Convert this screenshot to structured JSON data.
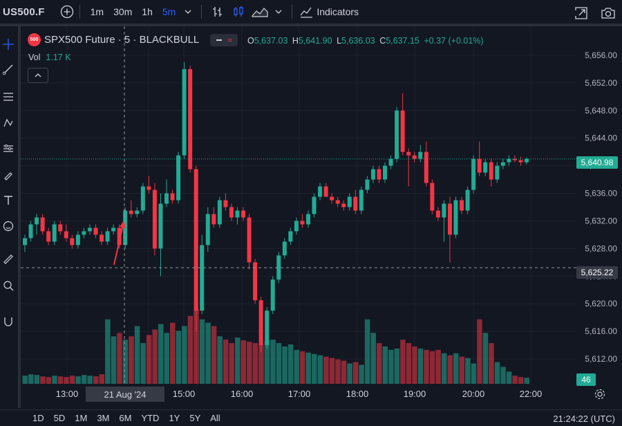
{
  "toolbar": {
    "symbol": "US500.F",
    "intervals": [
      "1m",
      "30m",
      "1h",
      "5m"
    ],
    "active_interval": "5m",
    "indicators_label": "Indicators"
  },
  "legend": {
    "logo_text": "500",
    "title": "SPX500 Future · 5 · BLACKBULL",
    "open_label": "O",
    "open": "5,637.03",
    "high_label": "H",
    "high": "5,641.90",
    "low_label": "L",
    "low": "5,636.03",
    "close_label": "C",
    "close": "5,637.15",
    "change": "+0.37 (+0.01%)",
    "vol_label": "Vol",
    "vol_value": "1.17 K"
  },
  "price_axis": {
    "ticks": [
      "5,656.00",
      "5,652.00",
      "5,648.00",
      "5,644.00",
      "5,640.00",
      "5,636.00",
      "5,632.00",
      "5,628.00",
      "5,624.00",
      "5,620.00",
      "5,616.00",
      "5,612.00"
    ],
    "last_price": "5,640.98",
    "crosshair_price": "5,625.22",
    "volume_tag": "46"
  },
  "time_axis": {
    "labels": [
      "13:00",
      "14:00",
      "15:00",
      "16:00",
      "17:00",
      "18:00",
      "19:00",
      "20:00",
      "22:00"
    ],
    "crosshair_date": "21 Aug '24"
  },
  "bottom": {
    "ranges": [
      "1D",
      "5D",
      "1M",
      "3M",
      "6M",
      "YTD",
      "1Y",
      "5Y",
      "All"
    ],
    "clock": "21:24:22 (UTC)"
  },
  "colors": {
    "up": "#22ab94",
    "down": "#f23645",
    "accent": "#2962ff",
    "background": "#131722"
  },
  "chart_data": {
    "type": "candlestick",
    "interval": "5m",
    "y_range": [
      5609,
      5658
    ],
    "candles_ohlc": [
      [
        5628.5,
        5630.0,
        5627.5,
        5629.5
      ],
      [
        5629.5,
        5632.0,
        5629.0,
        5631.5
      ],
      [
        5631.5,
        5633.0,
        5630.0,
        5632.5
      ],
      [
        5632.5,
        5633.0,
        5630.0,
        5630.5
      ],
      [
        5630.5,
        5631.0,
        5628.5,
        5629.0
      ],
      [
        5629.0,
        5632.0,
        5628.5,
        5631.5
      ],
      [
        5631.5,
        5632.0,
        5630.0,
        5630.5
      ],
      [
        5630.5,
        5631.5,
        5629.0,
        5629.5
      ],
      [
        5629.5,
        5630.0,
        5628.0,
        5628.5
      ],
      [
        5628.5,
        5630.5,
        5628.0,
        5630.0
      ],
      [
        5630.0,
        5631.0,
        5629.5,
        5630.5
      ],
      [
        5630.5,
        5631.5,
        5630.0,
        5631.0
      ],
      [
        5631.0,
        5631.5,
        5629.5,
        5630.0
      ],
      [
        5630.0,
        5630.5,
        5628.5,
        5629.0
      ],
      [
        5629.0,
        5631.0,
        5628.5,
        5630.5
      ],
      [
        5630.5,
        5631.5,
        5630.0,
        5631.0
      ],
      [
        5631.0,
        5631.5,
        5628.0,
        5628.5
      ],
      [
        5628.5,
        5634.0,
        5628.0,
        5633.5
      ],
      [
        5633.5,
        5635.0,
        5632.5,
        5633.0
      ],
      [
        5633.0,
        5634.0,
        5632.5,
        5633.5
      ],
      [
        5633.5,
        5637.5,
        5633.0,
        5637.0
      ],
      [
        5637.0,
        5638.5,
        5636.0,
        5636.5
      ],
      [
        5636.5,
        5637.5,
        5627.0,
        5628.0
      ],
      [
        5628.0,
        5636.0,
        5624.0,
        5634.5
      ],
      [
        5634.5,
        5638.0,
        5634.0,
        5636.0
      ],
      [
        5636.0,
        5636.5,
        5634.5,
        5635.0
      ],
      [
        5635.0,
        5642.0,
        5634.5,
        5641.5
      ],
      [
        5641.5,
        5655.0,
        5641.0,
        5654.0
      ],
      [
        5654.0,
        5654.5,
        5639.0,
        5639.5
      ],
      [
        5639.5,
        5640.0,
        5616.0,
        5619.0
      ],
      [
        5619.0,
        5630.0,
        5618.5,
        5628.5
      ],
      [
        5628.5,
        5634.0,
        5627.5,
        5633.0
      ],
      [
        5633.0,
        5634.0,
        5631.0,
        5631.5
      ],
      [
        5631.5,
        5635.5,
        5631.0,
        5635.0
      ],
      [
        5635.0,
        5636.0,
        5633.5,
        5634.0
      ],
      [
        5634.0,
        5634.5,
        5632.0,
        5632.5
      ],
      [
        5632.5,
        5634.0,
        5631.5,
        5633.5
      ],
      [
        5633.5,
        5634.0,
        5632.0,
        5632.5
      ],
      [
        5632.5,
        5633.0,
        5625.0,
        5626.0
      ],
      [
        5626.0,
        5626.5,
        5620.0,
        5620.5
      ],
      [
        5620.5,
        5621.0,
        5613.0,
        5614.0
      ],
      [
        5614.0,
        5619.5,
        5613.5,
        5619.0
      ],
      [
        5619.0,
        5624.0,
        5618.5,
        5623.5
      ],
      [
        5623.5,
        5627.5,
        5623.0,
        5627.0
      ],
      [
        5627.0,
        5629.5,
        5626.5,
        5629.0
      ],
      [
        5629.0,
        5631.0,
        5628.5,
        5630.5
      ],
      [
        5630.5,
        5632.5,
        5630.0,
        5632.0
      ],
      [
        5632.0,
        5633.0,
        5631.0,
        5631.5
      ],
      [
        5631.5,
        5633.5,
        5631.0,
        5633.0
      ],
      [
        5633.0,
        5636.0,
        5632.5,
        5635.5
      ],
      [
        5635.5,
        5637.5,
        5635.0,
        5637.0
      ],
      [
        5637.0,
        5637.5,
        5635.5,
        5635.5
      ],
      [
        5635.5,
        5636.0,
        5634.5,
        5635.0
      ],
      [
        5635.0,
        5635.5,
        5634.0,
        5634.5
      ],
      [
        5634.5,
        5635.0,
        5633.5,
        5634.0
      ],
      [
        5634.0,
        5636.0,
        5633.5,
        5635.5
      ],
      [
        5635.5,
        5636.5,
        5633.0,
        5633.5
      ],
      [
        5633.5,
        5637.0,
        5633.0,
        5636.5
      ],
      [
        5636.5,
        5638.5,
        5636.0,
        5638.0
      ],
      [
        5638.0,
        5640.0,
        5637.5,
        5639.5
      ],
      [
        5639.5,
        5640.0,
        5637.5,
        5638.0
      ],
      [
        5638.0,
        5640.5,
        5637.5,
        5640.0
      ],
      [
        5640.0,
        5641.5,
        5639.5,
        5641.0
      ],
      [
        5641.0,
        5648.5,
        5640.5,
        5648.0
      ],
      [
        5648.0,
        5650.5,
        5641.5,
        5642.0
      ],
      [
        5642.0,
        5642.5,
        5637.0,
        5641.5
      ],
      [
        5641.5,
        5642.0,
        5640.5,
        5641.0
      ],
      [
        5641.0,
        5643.0,
        5640.5,
        5642.0
      ],
      [
        5642.0,
        5643.5,
        5637.0,
        5637.5
      ],
      [
        5637.5,
        5638.0,
        5633.0,
        5633.5
      ],
      [
        5633.5,
        5634.0,
        5632.0,
        5632.5
      ],
      [
        5632.5,
        5635.0,
        5629.0,
        5634.5
      ],
      [
        5634.5,
        5635.5,
        5626.0,
        5630.0
      ],
      [
        5630.0,
        5635.5,
        5629.5,
        5635.0
      ],
      [
        5635.0,
        5635.5,
        5633.0,
        5633.5
      ],
      [
        5633.5,
        5637.0,
        5633.0,
        5636.5
      ],
      [
        5636.5,
        5641.5,
        5636.0,
        5641.0
      ],
      [
        5641.0,
        5643.5,
        5638.5,
        5639.0
      ],
      [
        5639.0,
        5641.0,
        5638.5,
        5640.5
      ],
      [
        5640.5,
        5641.0,
        5637.0,
        5638.0
      ],
      [
        5638.0,
        5640.5,
        5637.5,
        5640.0
      ],
      [
        5640.0,
        5641.0,
        5639.5,
        5640.5
      ],
      [
        5640.5,
        5641.5,
        5640.0,
        5641.0
      ],
      [
        5641.0,
        5641.5,
        5640.5,
        5640.8
      ],
      [
        5640.8,
        5641.3,
        5640.0,
        5640.5
      ],
      [
        5640.5,
        5641.2,
        5640.2,
        5641.0
      ]
    ],
    "volumes": [
      12,
      14,
      13,
      11,
      10,
      12,
      11,
      10,
      12,
      11,
      13,
      12,
      11,
      14,
      95,
      70,
      75,
      65,
      70,
      85,
      60,
      72,
      80,
      88,
      75,
      90,
      78,
      85,
      100,
      110,
      95,
      90,
      85,
      70,
      65,
      60,
      68,
      64,
      62,
      60,
      58,
      64,
      65,
      60,
      55,
      58,
      50,
      48,
      46,
      44,
      42,
      40,
      38,
      36,
      34,
      30,
      32,
      28,
      95,
      75,
      60,
      55,
      50,
      52,
      65,
      60,
      55,
      52,
      50,
      48,
      50,
      45,
      42,
      45,
      40,
      38,
      30,
      95,
      75,
      60,
      32,
      25,
      18,
      12,
      10,
      9
    ]
  }
}
